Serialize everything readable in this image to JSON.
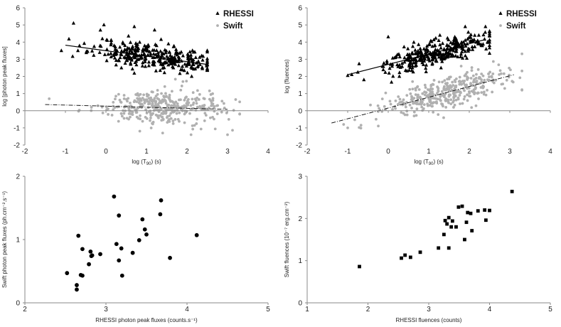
{
  "chart_data": [
    {
      "id": "tl",
      "type": "scatter",
      "title": "",
      "xlabel_main": "log (T",
      "xlabel_sub": "90",
      "xlabel_tail": ") (s)",
      "ylabel": "log [photon peak fluxes]",
      "xlim": [
        -2,
        4
      ],
      "ylim": [
        -2,
        6
      ],
      "xticks": [
        "-2",
        "-1",
        "0",
        "1",
        "2",
        "3",
        "4"
      ],
      "yticks": [
        "-2",
        "-1",
        "0",
        "1",
        "2",
        "3",
        "4",
        "5",
        "6"
      ],
      "legend_position": "top-right",
      "series": [
        {
          "name": "RHESSI",
          "marker": "triangle",
          "color": "#000000",
          "cloud": {
            "n": 330,
            "seed": 11,
            "x_mean": 1.2,
            "x_sd": 0.75,
            "x_min": -1.1,
            "x_max": 2.5,
            "y_slope": -0.32,
            "y_intercept": 3.55,
            "y_sd": 0.38
          },
          "points": [
            [
              -0.8,
              5.1
            ],
            [
              -0.05,
              5.0
            ],
            [
              0.7,
              4.9
            ],
            [
              1.2,
              4.7
            ],
            [
              -1.1,
              3.5
            ]
          ],
          "trend": {
            "x": [
              -1.0,
              2.5
            ],
            "y": [
              3.82,
              2.7
            ],
            "style": "solid"
          }
        },
        {
          "name": "Swift",
          "marker": "circle",
          "color": "#b0b0b0",
          "cloud": {
            "n": 370,
            "seed": 29,
            "x_mean": 1.35,
            "x_sd": 0.75,
            "x_min": -1.5,
            "x_max": 3.3,
            "y_slope": -0.06,
            "y_intercept": 0.3,
            "y_sd": 0.48
          },
          "points": [
            [
              1.9,
              1.7
            ],
            [
              1.4,
              -1.3
            ],
            [
              2.1,
              -1.4
            ],
            [
              3.0,
              -1.4
            ],
            [
              -1.4,
              0.7
            ]
          ],
          "trend": {
            "x": [
              -1.5,
              3.0
            ],
            "y": [
              0.36,
              0.08
            ],
            "style": "dashdot"
          }
        }
      ]
    },
    {
      "id": "tr",
      "type": "scatter",
      "title": "",
      "xlabel_main": "log (T",
      "xlabel_sub": "90",
      "xlabel_tail": ") (s)",
      "ylabel": "log (fluences)",
      "xlim": [
        -2,
        4
      ],
      "ylim": [
        -2,
        6
      ],
      "xticks": [
        "-2",
        "-1",
        "0",
        "1",
        "2",
        "3",
        "4"
      ],
      "yticks": [
        "-2",
        "-1",
        "0",
        "1",
        "2",
        "3",
        "4",
        "5",
        "6"
      ],
      "legend_position": "top-right",
      "series": [
        {
          "name": "RHESSI",
          "marker": "triangle",
          "color": "#000000",
          "cloud": {
            "n": 330,
            "seed": 47,
            "x_mean": 1.2,
            "x_sd": 0.7,
            "x_min": -1.0,
            "x_max": 2.5,
            "y_slope": 0.58,
            "y_intercept": 2.65,
            "y_sd": 0.33
          },
          "points": [
            [
              0.0,
              4.3
            ],
            [
              1.9,
              4.9
            ],
            [
              -0.9,
              2.1
            ],
            [
              -0.6,
              1.8
            ],
            [
              2.4,
              4.9
            ]
          ],
          "trend": {
            "x": [
              -1.0,
              2.4
            ],
            "y": [
              2.1,
              4.15
            ],
            "style": "solid"
          }
        },
        {
          "name": "Swift",
          "marker": "circle",
          "color": "#b0b0b0",
          "cloud": {
            "n": 370,
            "seed": 83,
            "x_mean": 1.4,
            "x_sd": 0.8,
            "x_min": -1.5,
            "x_max": 3.3,
            "y_slope": 0.6,
            "y_intercept": 0.2,
            "y_sd": 0.45
          },
          "points": [
            [
              -1.0,
              -1.0
            ],
            [
              -1.1,
              -0.8
            ],
            [
              3.3,
              1.2
            ],
            [
              1.8,
              2.6
            ],
            [
              0.6,
              1.7
            ]
          ],
          "trend": {
            "x": [
              -1.4,
              3.1
            ],
            "y": [
              -0.72,
              2.1
            ],
            "style": "dashdot"
          }
        }
      ]
    },
    {
      "id": "bl",
      "type": "scatter",
      "title": "",
      "xlabel": "RHESSI photon peak fluxes (counts.s⁻¹)",
      "ylabel": "Swift photon peak fluxes (ph.cm⁻².s⁻¹)",
      "xlim": [
        2,
        5
      ],
      "ylim": [
        0,
        2
      ],
      "xticks": [
        "2",
        "3",
        "4",
        "5"
      ],
      "yticks": [
        "0",
        "1",
        "2"
      ],
      "series": [
        {
          "name": "",
          "marker": "circle",
          "color": "#000000",
          "points": [
            [
              2.52,
              0.47
            ],
            [
              2.64,
              0.28
            ],
            [
              2.64,
              0.21
            ],
            [
              2.66,
              1.06
            ],
            [
              2.69,
              0.44
            ],
            [
              2.71,
              0.43
            ],
            [
              2.71,
              0.85
            ],
            [
              2.81,
              0.81
            ],
            [
              2.79,
              0.61
            ],
            [
              2.83,
              0.75
            ],
            [
              2.82,
              0.74
            ],
            [
              2.93,
              0.77
            ],
            [
              3.1,
              1.68
            ],
            [
              3.13,
              0.93
            ],
            [
              3.16,
              1.38
            ],
            [
              3.16,
              0.67
            ],
            [
              3.19,
              0.86
            ],
            [
              3.2,
              0.43
            ],
            [
              3.33,
              0.79
            ],
            [
              3.41,
              0.99
            ],
            [
              3.45,
              1.32
            ],
            [
              3.48,
              1.16
            ],
            [
              3.5,
              1.08
            ],
            [
              3.67,
              1.4
            ],
            [
              3.68,
              1.62
            ],
            [
              3.79,
              0.71
            ],
            [
              4.12,
              1.07
            ]
          ]
        }
      ]
    },
    {
      "id": "br",
      "type": "scatter",
      "title": "",
      "xlabel": "RHESSI fluences (counts)",
      "ylabel": "Swift fluences (10⁻⁷ erg.cm⁻²)",
      "xlim": [
        1,
        5
      ],
      "ylim": [
        0,
        3
      ],
      "xticks": [
        "1",
        "2",
        "3",
        "4",
        "5"
      ],
      "yticks": [
        "0",
        "1",
        "2",
        "3"
      ],
      "series": [
        {
          "name": "",
          "marker": "square",
          "color": "#000000",
          "points": [
            [
              1.86,
              0.86
            ],
            [
              2.55,
              1.06
            ],
            [
              2.61,
              1.13
            ],
            [
              2.7,
              1.08
            ],
            [
              2.86,
              1.2
            ],
            [
              3.16,
              1.3
            ],
            [
              3.25,
              1.62
            ],
            [
              3.27,
              1.95
            ],
            [
              3.3,
              1.87
            ],
            [
              3.33,
              1.3
            ],
            [
              3.33,
              2.02
            ],
            [
              3.37,
              1.8
            ],
            [
              3.39,
              1.94
            ],
            [
              3.45,
              1.8
            ],
            [
              3.49,
              2.27
            ],
            [
              3.55,
              2.29
            ],
            [
              3.59,
              1.5
            ],
            [
              3.62,
              1.91
            ],
            [
              3.64,
              2.14
            ],
            [
              3.69,
              2.12
            ],
            [
              3.71,
              1.71
            ],
            [
              3.81,
              2.18
            ],
            [
              3.92,
              2.2
            ],
            [
              3.94,
              1.96
            ],
            [
              4.0,
              2.19
            ],
            [
              4.37,
              2.64
            ]
          ]
        }
      ]
    }
  ]
}
